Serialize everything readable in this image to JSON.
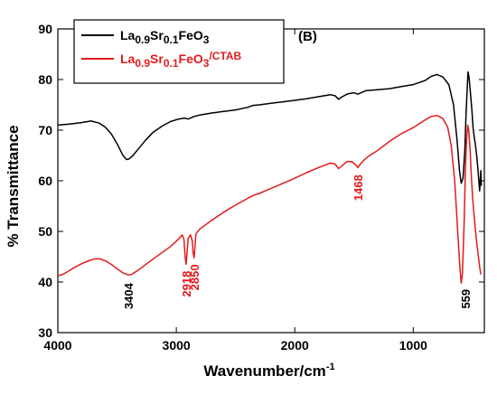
{
  "chart_data": {
    "type": "line",
    "panel_label": "(B)",
    "xlabel": "Wavenumber/cm",
    "xlabel_sup": "-1",
    "ylabel": "% Transmittance",
    "xlim": [
      4000,
      400
    ],
    "x_reversed": true,
    "ylim": [
      30,
      90
    ],
    "x_ticks": [
      4000,
      3000,
      2000,
      1000
    ],
    "y_ticks": [
      30,
      40,
      50,
      60,
      70,
      80,
      90
    ],
    "grid": false,
    "legend_position": "top-left",
    "series": [
      {
        "name": "La0.9Sr0.1FeO3",
        "legend": [
          {
            "t": "La",
            "s": ""
          },
          {
            "t": "0.9",
            "s": "sub"
          },
          {
            "t": "Sr",
            "s": ""
          },
          {
            "t": "0.1",
            "s": "sub"
          },
          {
            "t": "FeO",
            "s": ""
          },
          {
            "t": "3",
            "s": "sub"
          }
        ],
        "color": "#000000",
        "points": [
          [
            4000,
            71
          ],
          [
            3900,
            71.2
          ],
          [
            3800,
            71.5
          ],
          [
            3720,
            71.8
          ],
          [
            3650,
            71.4
          ],
          [
            3600,
            70.6
          ],
          [
            3550,
            69.3
          ],
          [
            3500,
            67.3
          ],
          [
            3450,
            65
          ],
          [
            3420,
            64.2
          ],
          [
            3400,
            64.3
          ],
          [
            3370,
            64.9
          ],
          [
            3320,
            66.3
          ],
          [
            3260,
            68
          ],
          [
            3200,
            69.5
          ],
          [
            3120,
            70.8
          ],
          [
            3050,
            71.7
          ],
          [
            2980,
            72.2
          ],
          [
            2930,
            72.4
          ],
          [
            2900,
            72.2
          ],
          [
            2880,
            72.4
          ],
          [
            2850,
            72.7
          ],
          [
            2800,
            73
          ],
          [
            2700,
            73.4
          ],
          [
            2600,
            73.7
          ],
          [
            2500,
            74
          ],
          [
            2400,
            74.5
          ],
          [
            2350,
            74.9
          ],
          [
            2300,
            75
          ],
          [
            2200,
            75.3
          ],
          [
            2100,
            75.6
          ],
          [
            2000,
            75.9
          ],
          [
            1900,
            76.2
          ],
          [
            1800,
            76.6
          ],
          [
            1700,
            77
          ],
          [
            1660,
            76.8
          ],
          [
            1630,
            76.1
          ],
          [
            1600,
            76.6
          ],
          [
            1550,
            77.2
          ],
          [
            1500,
            77.4
          ],
          [
            1468,
            77.1
          ],
          [
            1440,
            77.4
          ],
          [
            1400,
            77.8
          ],
          [
            1300,
            78
          ],
          [
            1200,
            78.2
          ],
          [
            1100,
            78.6
          ],
          [
            1000,
            79
          ],
          [
            900,
            79.8
          ],
          [
            850,
            80.6
          ],
          [
            800,
            81
          ],
          [
            750,
            80.5
          ],
          [
            700,
            79
          ],
          [
            660,
            75
          ],
          [
            630,
            68
          ],
          [
            610,
            62
          ],
          [
            595,
            59.5
          ],
          [
            580,
            60.5
          ],
          [
            565,
            66
          ],
          [
            555,
            73
          ],
          [
            545,
            78
          ],
          [
            538,
            81.5
          ],
          [
            530,
            80.5
          ],
          [
            520,
            78
          ],
          [
            505,
            74
          ],
          [
            495,
            70.5
          ],
          [
            485,
            68.5
          ],
          [
            475,
            67
          ],
          [
            465,
            65
          ],
          [
            455,
            62.5
          ],
          [
            445,
            59.5
          ],
          [
            440,
            58
          ],
          [
            430,
            62
          ],
          [
            425,
            59
          ]
        ]
      },
      {
        "name": "La0.9Sr0.1FeO3/CTAB",
        "legend": [
          {
            "t": "La",
            "s": ""
          },
          {
            "t": "0.9",
            "s": "sub"
          },
          {
            "t": "Sr",
            "s": ""
          },
          {
            "t": "0.1",
            "s": "sub"
          },
          {
            "t": "FeO",
            "s": ""
          },
          {
            "t": "3",
            "s": "sub"
          },
          {
            "t": "/CTAB",
            "s": "sup"
          }
        ],
        "color": "#e41a1c",
        "points": [
          [
            4000,
            41.2
          ],
          [
            3950,
            41.6
          ],
          [
            3900,
            42.3
          ],
          [
            3850,
            43
          ],
          [
            3800,
            43.6
          ],
          [
            3750,
            44.1
          ],
          [
            3700,
            44.5
          ],
          [
            3650,
            44.6
          ],
          [
            3600,
            44.2
          ],
          [
            3550,
            43.5
          ],
          [
            3500,
            42.6
          ],
          [
            3450,
            41.8
          ],
          [
            3404,
            41.4
          ],
          [
            3380,
            41.5
          ],
          [
            3330,
            42.2
          ],
          [
            3250,
            43.6
          ],
          [
            3150,
            45.3
          ],
          [
            3050,
            47
          ],
          [
            2980,
            48.5
          ],
          [
            2950,
            49.3
          ],
          [
            2935,
            48.4
          ],
          [
            2925,
            45
          ],
          [
            2918,
            43.5
          ],
          [
            2910,
            45.5
          ],
          [
            2900,
            48.6
          ],
          [
            2880,
            49.3
          ],
          [
            2865,
            48.1
          ],
          [
            2858,
            45.8
          ],
          [
            2850,
            44.8
          ],
          [
            2843,
            46.8
          ],
          [
            2835,
            49.5
          ],
          [
            2800,
            50.5
          ],
          [
            2700,
            52.2
          ],
          [
            2600,
            53.8
          ],
          [
            2500,
            55.2
          ],
          [
            2400,
            56.5
          ],
          [
            2350,
            57.1
          ],
          [
            2300,
            57.5
          ],
          [
            2200,
            58.5
          ],
          [
            2100,
            59.5
          ],
          [
            2000,
            60.5
          ],
          [
            1900,
            61.6
          ],
          [
            1800,
            62.6
          ],
          [
            1700,
            63.5
          ],
          [
            1660,
            63.3
          ],
          [
            1630,
            62.4
          ],
          [
            1600,
            63
          ],
          [
            1560,
            63.8
          ],
          [
            1520,
            63.8
          ],
          [
            1480,
            63
          ],
          [
            1468,
            62.6
          ],
          [
            1450,
            63.2
          ],
          [
            1420,
            64
          ],
          [
            1380,
            64.8
          ],
          [
            1300,
            66
          ],
          [
            1200,
            67.8
          ],
          [
            1100,
            69.3
          ],
          [
            1000,
            70.5
          ],
          [
            900,
            72
          ],
          [
            850,
            72.7
          ],
          [
            800,
            72.9
          ],
          [
            750,
            72.3
          ],
          [
            710,
            70.6
          ],
          [
            680,
            67
          ],
          [
            650,
            60
          ],
          [
            625,
            50
          ],
          [
            605,
            42.5
          ],
          [
            595,
            39.8
          ],
          [
            585,
            41.5
          ],
          [
            570,
            52
          ],
          [
            560,
            62
          ],
          [
            550,
            68
          ],
          [
            540,
            71
          ],
          [
            532,
            70
          ],
          [
            520,
            66
          ],
          [
            510,
            61
          ],
          [
            500,
            57
          ],
          [
            490,
            54
          ],
          [
            480,
            51.5
          ],
          [
            470,
            49
          ],
          [
            460,
            47
          ],
          [
            450,
            45
          ],
          [
            440,
            43
          ],
          [
            430,
            41.5
          ]
        ]
      }
    ],
    "annotations": [
      {
        "text": "3404",
        "x": 3404,
        "y": 39.8,
        "color": "#000000"
      },
      {
        "text": "2918",
        "x": 2918,
        "y": 42.2,
        "color": "#e41a1c"
      },
      {
        "text": "2850",
        "x": 2850,
        "y": 43.5,
        "color": "#e41a1c"
      },
      {
        "text": "1468",
        "x": 1468,
        "y": 61.2,
        "color": "#e41a1c"
      },
      {
        "text": "559",
        "x": 559,
        "y": 38.6,
        "color": "#000000"
      }
    ]
  }
}
